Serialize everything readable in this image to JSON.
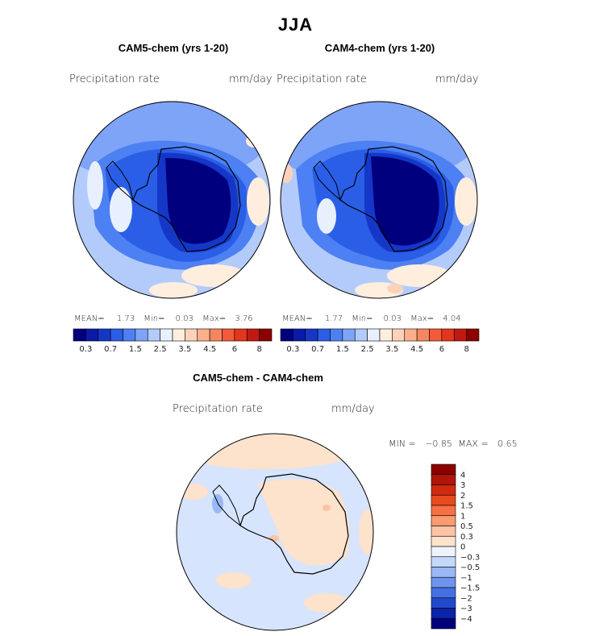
{
  "figure": {
    "season": "JJA"
  },
  "panels": [
    {
      "title": "CAM5-chem (yrs 1-20)",
      "variable": "Precipitation rate",
      "units": "mm/day",
      "stats": {
        "mean_label": "MEAN=",
        "mean": "1.73",
        "min_label": "Min=",
        "min": "0.03",
        "max_label": "Max=",
        "max": "3.76"
      }
    },
    {
      "title": "CAM4-chem (yrs 1-20)",
      "variable": "Precipitation rate",
      "units": "mm/day",
      "stats": {
        "mean_label": "MEAN=",
        "mean": "1.77",
        "min_label": "Min=",
        "min": "0.03",
        "max_label": "Max=",
        "max": "4.04"
      }
    },
    {
      "title": "CAM5-chem - CAM4-chem",
      "variable": "Precipitation rate",
      "units": "mm/day",
      "stats": {
        "min_label": "MIN =",
        "min": "−0.85",
        "max_label": "MAX =",
        "max": "0.65"
      }
    }
  ],
  "chart_data": [
    {
      "type": "heatmap",
      "title": "CAM5-chem (yrs 1-20)",
      "projection": "south polar stereographic",
      "units": "mm/day",
      "mean": 1.73,
      "min": 0.03,
      "max": 3.76,
      "colorbar": {
        "orientation": "horizontal",
        "tick_labels": [
          "0.3",
          "0.7",
          "1.5",
          "2.5",
          "3.5",
          "4.5",
          "6",
          "8"
        ],
        "colors": [
          "#00007f",
          "#0a1aa8",
          "#1537c8",
          "#2a5ee6",
          "#4d80f2",
          "#7ea4f7",
          "#b3cbfb",
          "#e8f0ff",
          "#ffeede",
          "#fdd2b8",
          "#fbb08c",
          "#f78660",
          "#f25a38",
          "#e2361e",
          "#c01a10",
          "#8c0000"
        ]
      }
    },
    {
      "type": "heatmap",
      "title": "CAM4-chem (yrs 1-20)",
      "projection": "south polar stereographic",
      "units": "mm/day",
      "mean": 1.77,
      "min": 0.03,
      "max": 4.04,
      "colorbar": {
        "orientation": "horizontal",
        "tick_labels": [
          "0.3",
          "0.7",
          "1.5",
          "2.5",
          "3.5",
          "4.5",
          "6",
          "8"
        ],
        "colors": [
          "#00007f",
          "#0a1aa8",
          "#1537c8",
          "#2a5ee6",
          "#4d80f2",
          "#7ea4f7",
          "#b3cbfb",
          "#e8f0ff",
          "#ffeede",
          "#fdd2b8",
          "#fbb08c",
          "#f78660",
          "#f25a38",
          "#e2361e",
          "#c01a10",
          "#8c0000"
        ]
      }
    },
    {
      "type": "heatmap",
      "title": "CAM5-chem - CAM4-chem",
      "projection": "south polar stereographic",
      "units": "mm/day",
      "min": -0.85,
      "max": 0.65,
      "colorbar": {
        "orientation": "vertical",
        "tick_labels": [
          "4",
          "3",
          "2",
          "1.5",
          "1",
          "0.5",
          "0.3",
          "0",
          "−0.3",
          "−0.5",
          "−1",
          "−1.5",
          "−2",
          "−3",
          "−4"
        ],
        "colors": [
          "#8c0000",
          "#b01608",
          "#d22a10",
          "#ea4a20",
          "#f57042",
          "#fa9a70",
          "#fcc4a4",
          "#fde2cc",
          "#eef4ff",
          "#c4d8fb",
          "#9ab8f6",
          "#6e94ee",
          "#4570e2",
          "#2149cc",
          "#0c24a8",
          "#00007f"
        ]
      }
    }
  ]
}
